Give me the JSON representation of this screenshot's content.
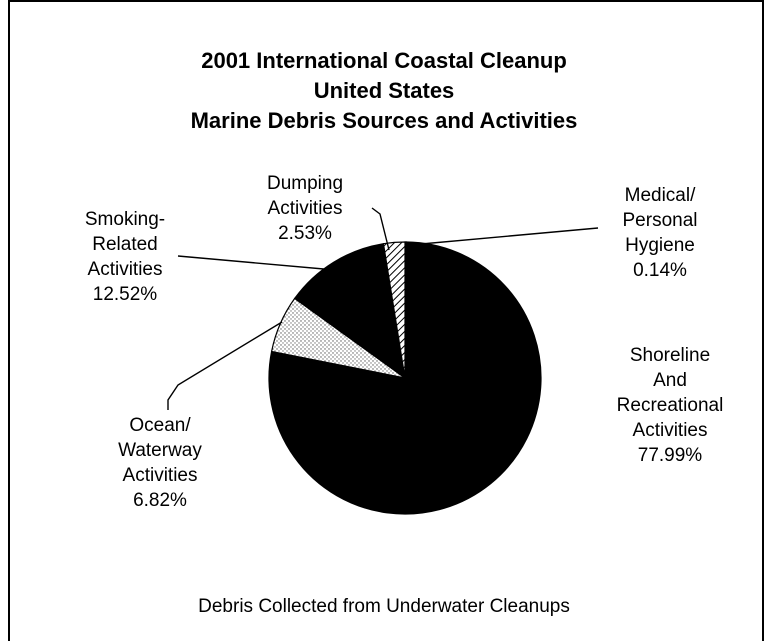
{
  "chart_data": {
    "type": "pie",
    "title": [
      "2001 International Coastal Cleanup",
      "United States",
      "Marine Debris Sources and Activities"
    ],
    "footer": "Debris Collected from Underwater Cleanups",
    "slices": [
      {
        "name": "Shoreline And Recreational Activities",
        "label_lines": [
          "Shoreline",
          "And",
          "Recreational",
          "Activities"
        ],
        "value_label": "77.99%",
        "value": 77.99,
        "fill": "#000000"
      },
      {
        "name": "Ocean/ Waterway Activities",
        "label_lines": [
          "Ocean/",
          "Waterway",
          "Activities"
        ],
        "value_label": "6.82%",
        "value": 6.82,
        "fill": "#f2f2f2"
      },
      {
        "name": "Smoking- Related Activities",
        "label_lines": [
          "Smoking-",
          "Related",
          "Activities"
        ],
        "value_label": "12.52%",
        "value": 12.52,
        "fill": "#000000"
      },
      {
        "name": "Dumping Activities",
        "label_lines": [
          "Dumping",
          "Activities"
        ],
        "value_label": "2.53%",
        "value": 2.53,
        "fill": "#ffffff"
      },
      {
        "name": "Medical/ Personal Hygiene",
        "label_lines": [
          "Medical/",
          "Personal",
          "Hygiene"
        ],
        "value_label": "0.14%",
        "value": 0.14,
        "fill": "#000000"
      }
    ]
  }
}
